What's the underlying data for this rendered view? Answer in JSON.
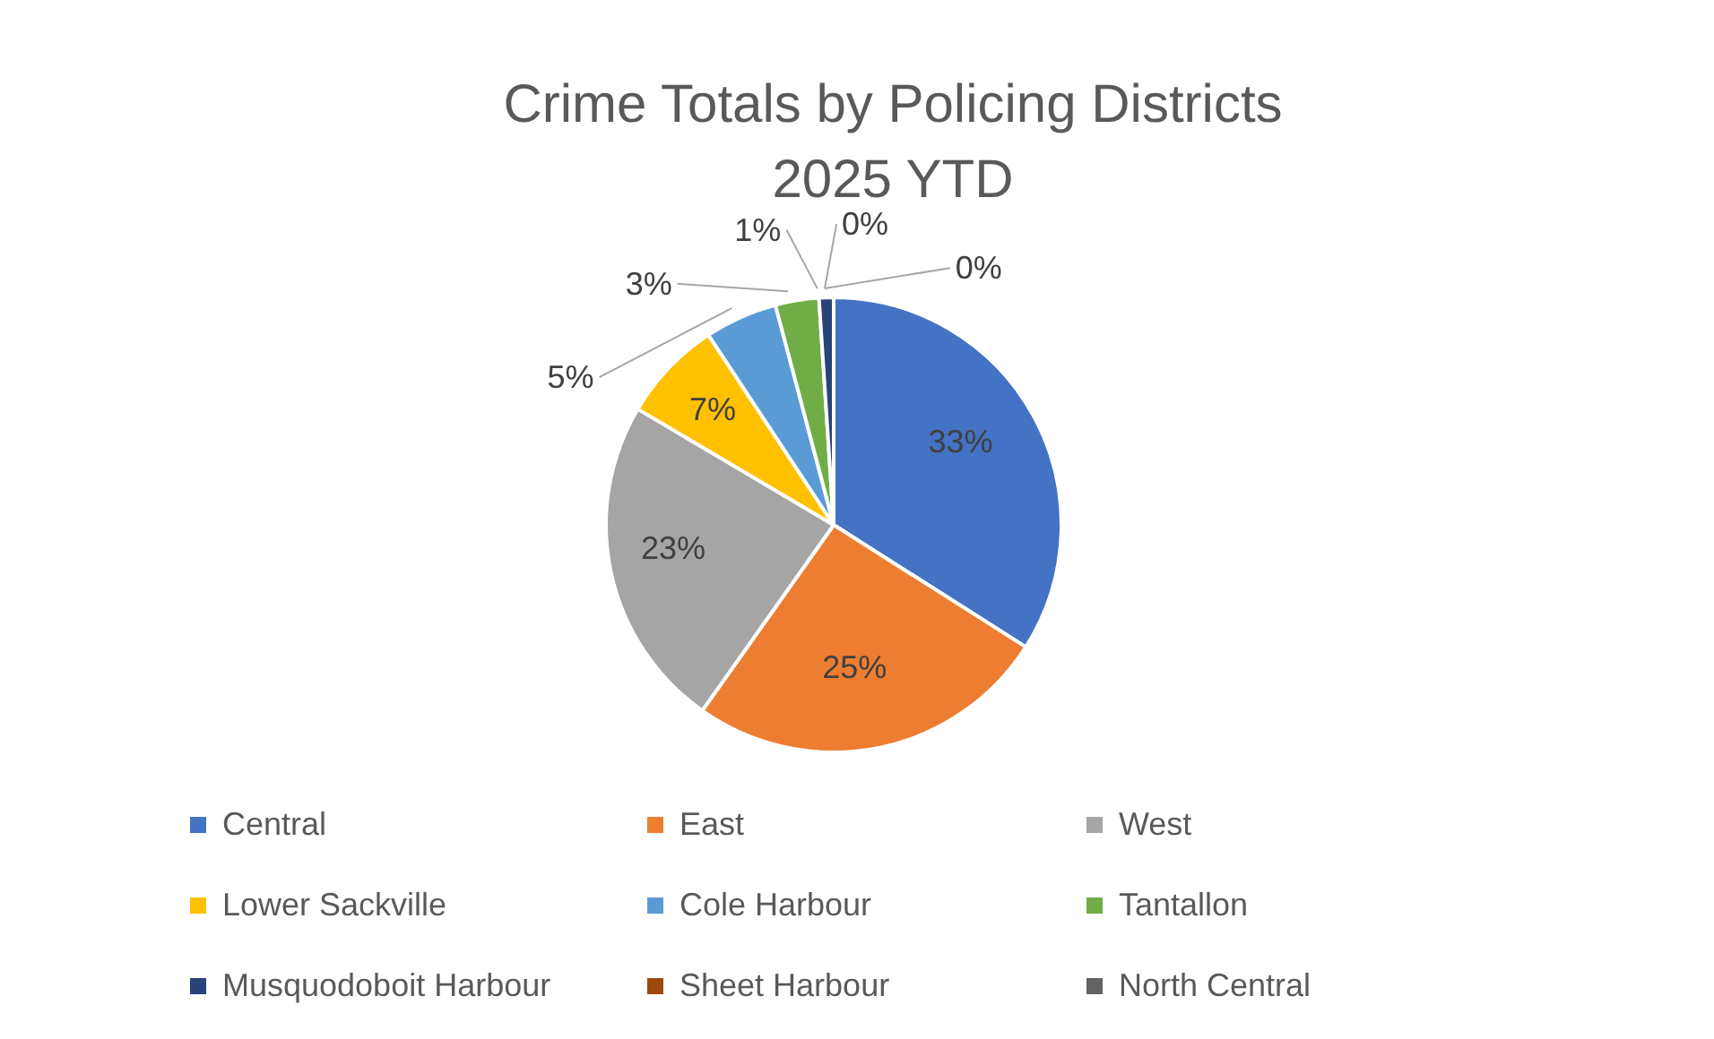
{
  "chart_data": {
    "type": "pie",
    "title": "Crime Totals by Policing Districts\n2025 YTD",
    "categories": [
      "Central",
      "East",
      "West",
      "Lower Sackville",
      "Cole Harbour",
      "Tantallon",
      "Musquodoboit Harbour",
      "Sheet Harbour",
      "North Central"
    ],
    "values": [
      33,
      25,
      23,
      7,
      5,
      3,
      1,
      0,
      0
    ],
    "colors": [
      "#4472c4",
      "#ed7d31",
      "#a5a5a5",
      "#ffc000",
      "#5b9bd5",
      "#70ad47",
      "#264478",
      "#9e480e",
      "#636363"
    ],
    "value_labels": [
      "33%",
      "25%",
      "23%",
      "7%",
      "5%",
      "3%",
      "1%",
      "0%",
      "0%"
    ],
    "legend": "bottom"
  }
}
